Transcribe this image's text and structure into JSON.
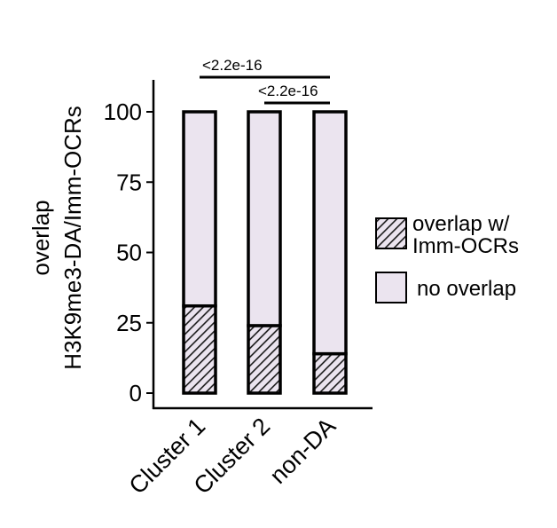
{
  "chart_data": {
    "type": "bar",
    "stacked": true,
    "ylabel": [
      "overlap",
      "H3K9me3-DA/Imm-OCRs"
    ],
    "ylim": [
      0,
      100
    ],
    "yticks": [
      0,
      25,
      50,
      75,
      100
    ],
    "categories": [
      "Cluster 1",
      "Cluster 2",
      "non-DA"
    ],
    "series": [
      {
        "name": "overlap w/ Imm-OCRs",
        "values": [
          31,
          24,
          14
        ],
        "pattern": "hatched",
        "color": "#e9e4ef",
        "hatch_color": "#1a1a1a"
      },
      {
        "name": "no overlap",
        "values": [
          69,
          76,
          86
        ],
        "color": "#ebe4ef"
      }
    ],
    "legend": {
      "position": "right",
      "items": [
        {
          "label_lines": [
            "overlap w/",
            "Imm-OCRs"
          ],
          "swatch": "hatched"
        },
        {
          "label_lines": [
            "no overlap"
          ],
          "swatch": "solid"
        }
      ]
    },
    "annotations": [
      {
        "text": "<2.2e-16",
        "from": "Cluster 1",
        "to": "non-DA"
      },
      {
        "text": "<2.2e-16",
        "from": "Cluster 2",
        "to": "non-DA"
      }
    ],
    "grid": false
  }
}
